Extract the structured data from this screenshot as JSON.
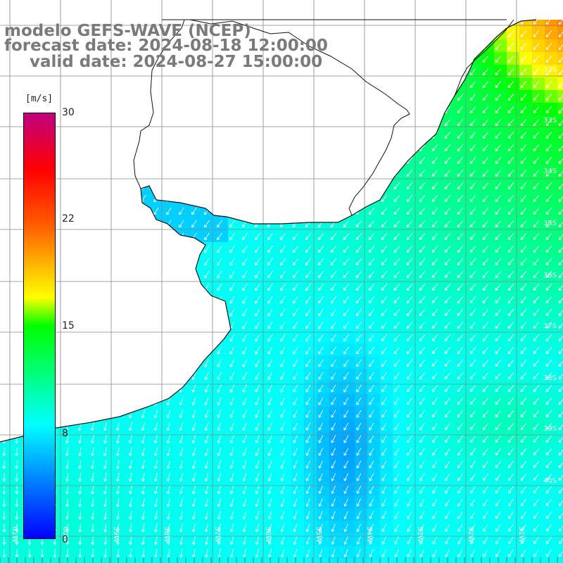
{
  "title": {
    "line1": "modelo GEFS-WAVE (NCEP)",
    "line2": "forecast date: 2024-08-18 12:00:00",
    "line3": "valid date: 2024-08-27 15:00:00"
  },
  "colorbar": {
    "unit": "[m/s]",
    "ticks": [
      "30",
      "22",
      "15",
      "8",
      "0"
    ],
    "gradient_stops": [
      {
        "value": 0,
        "color": "#0000ff"
      },
      {
        "value": 8,
        "color": "#00ffff"
      },
      {
        "value": 15,
        "color": "#00ff00"
      },
      {
        "value": 17,
        "color": "#ffff00"
      },
      {
        "value": 22,
        "color": "#ff6000"
      },
      {
        "value": 26,
        "color": "#ff0000"
      },
      {
        "value": 30,
        "color": "#c00080"
      }
    ]
  },
  "map": {
    "longitude_labels": [
      "61W",
      "60W",
      "59W",
      "58W",
      "57W",
      "56W",
      "55W",
      "54W",
      "53W",
      "52W",
      "51W"
    ],
    "latitude_labels": [
      "32S",
      "33S",
      "34S",
      "35S",
      "36S",
      "37S",
      "38S",
      "39S",
      "40S"
    ],
    "land_color": "#ffffff",
    "grid_color": "#888888",
    "arrow_color": "#ffffff"
  }
}
